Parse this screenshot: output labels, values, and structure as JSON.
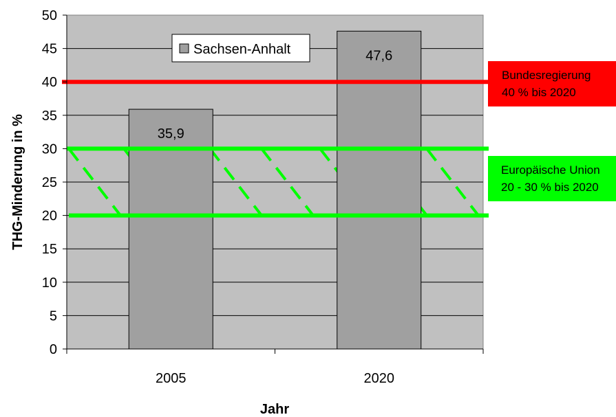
{
  "chart_data": {
    "type": "bar",
    "categories": [
      "2005",
      "2020"
    ],
    "series": [
      {
        "name": "Sachsen-Anhalt",
        "values": [
          35.9,
          47.6
        ],
        "labels": [
          "35,9",
          "47,6"
        ]
      }
    ],
    "xlabel": "Jahr",
    "ylabel": "THG-Minderung in %",
    "ylim": [
      0,
      50
    ],
    "yticks": [
      "0",
      "5",
      "10",
      "15",
      "20",
      "25",
      "30",
      "35",
      "40",
      "45",
      "50"
    ],
    "grid": true,
    "legend": "top-center",
    "reference_lines": [
      {
        "value": 40,
        "color": "#ff0000",
        "label_lines": [
          "Bundesregierung",
          "40 % bis 2020"
        ]
      },
      {
        "value": 30,
        "color": "#00ff00"
      },
      {
        "value": 20,
        "color": "#00ff00"
      }
    ],
    "reference_band": {
      "from": 20,
      "to": 30,
      "color": "#00ff00",
      "label_lines": [
        "Europäische Union",
        "20 - 30 % bis 2020"
      ]
    },
    "colors": {
      "plot_background": "#c0c0c0",
      "bar_fill": "#a0a0a0",
      "red_line": "#ff0000",
      "green_line": "#00ff00"
    }
  }
}
